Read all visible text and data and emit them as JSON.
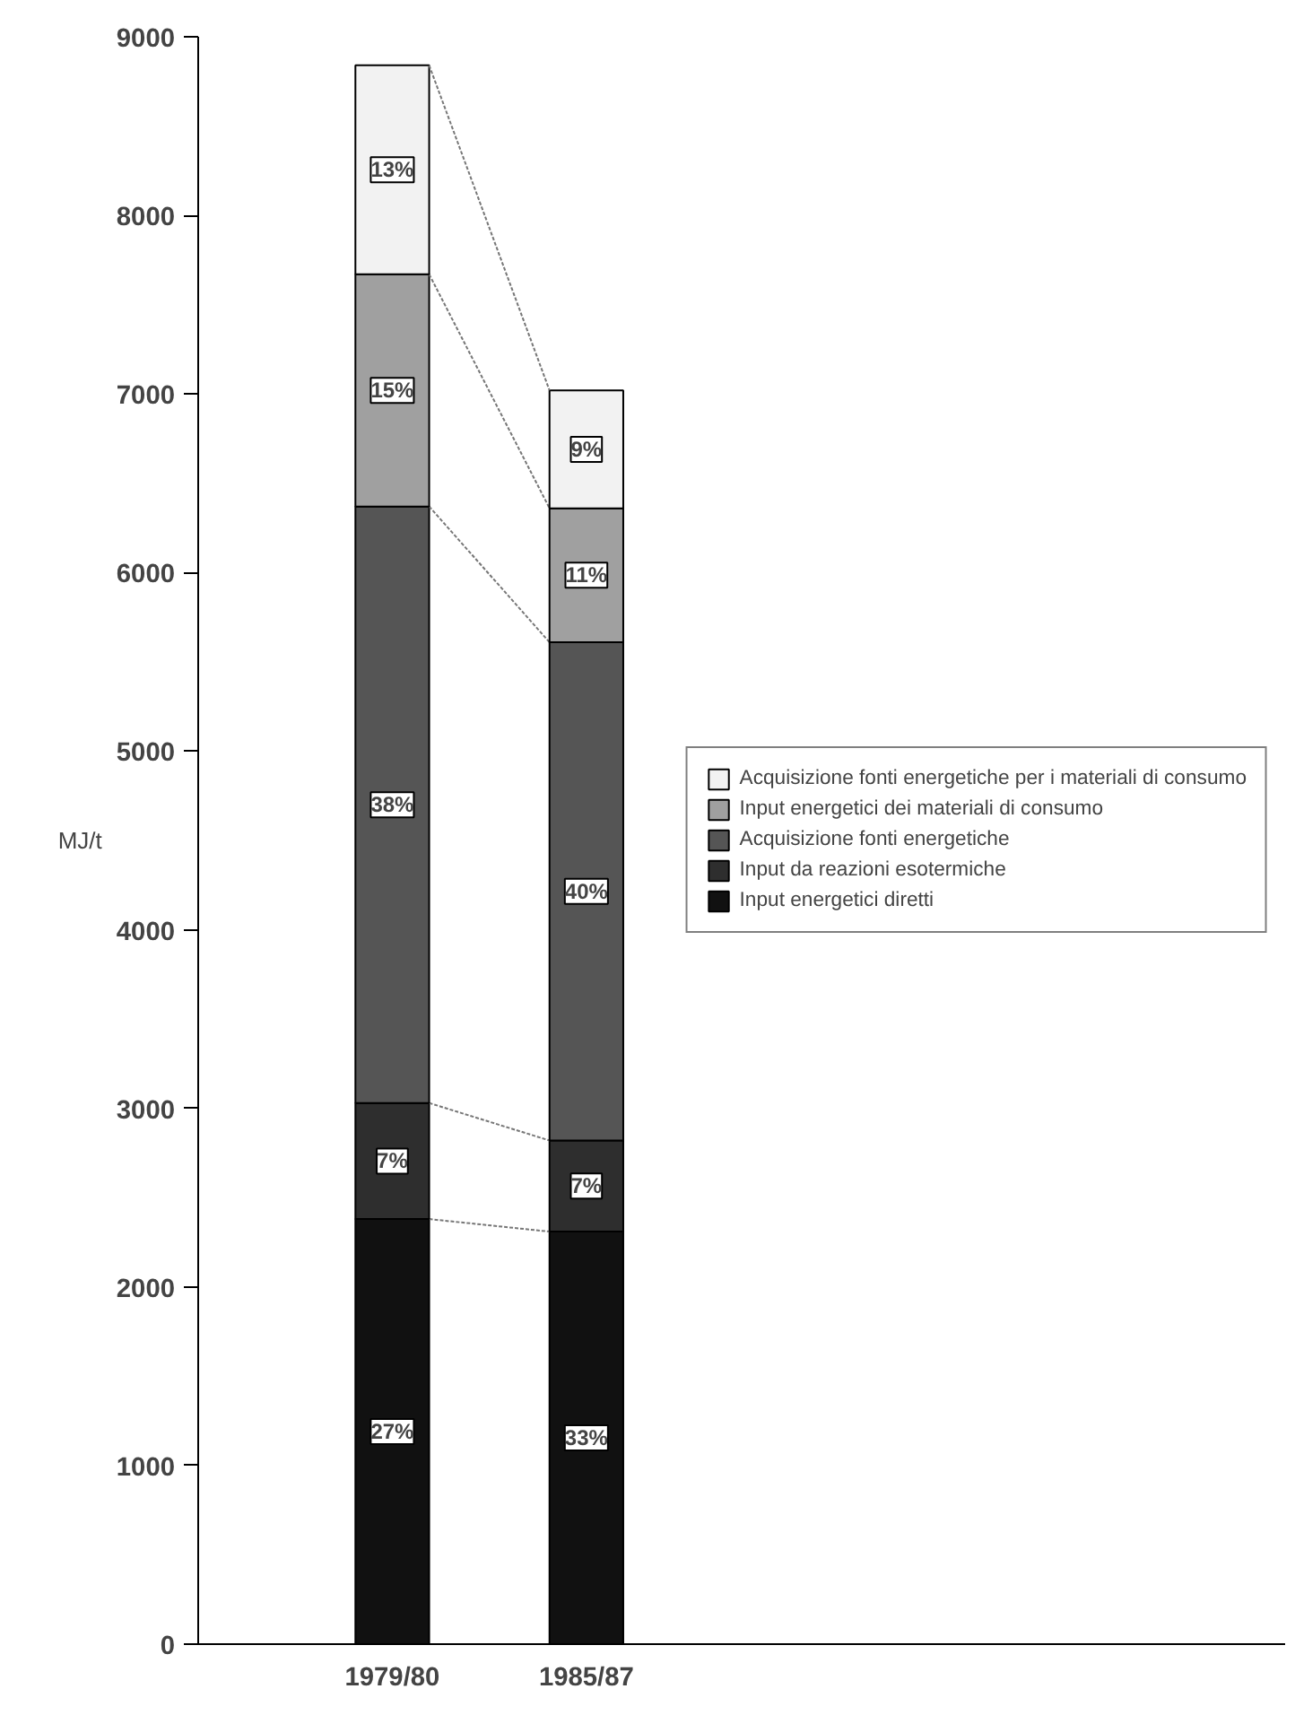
{
  "chart_data": {
    "type": "bar",
    "stacked": true,
    "ylabel": "MJ/t",
    "categories": [
      "1979/80",
      "1985/87"
    ],
    "series": [
      {
        "name": "Input energetici diretti",
        "color": "#111111",
        "values": [
          2380,
          2310
        ]
      },
      {
        "name": "Input da reazioni esotermiche",
        "color": "#2e2e2e",
        "values": [
          650,
          510
        ]
      },
      {
        "name": "Acquisizione fonti energetiche",
        "color": "#555555",
        "values": [
          3340,
          2790
        ]
      },
      {
        "name": "Input energetici dei materiali di consumo",
        "color": "#a0a0a0",
        "values": [
          1300,
          750
        ]
      },
      {
        "name": "Acquisizione fonti energetiche per i materiali di consumo",
        "color": "#f2f2f2",
        "values": [
          1170,
          660
        ]
      }
    ],
    "annotations": [
      {
        "text": "27%",
        "x": "1979/80",
        "y": 1190
      },
      {
        "text": "33%",
        "x": "1985/87",
        "y": 1155
      },
      {
        "text": "7%",
        "x": "1979/80",
        "y": 2705
      },
      {
        "text": "7%",
        "x": "1985/87",
        "y": 2565
      },
      {
        "text": "38%",
        "x": "1979/80",
        "y": 4700
      },
      {
        "text": "40%",
        "x": "1985/87",
        "y": 4215
      },
      {
        "text": "15%",
        "x": "1979/80",
        "y": 7020
      },
      {
        "text": "11%",
        "x": "1985/87",
        "y": 5985
      },
      {
        "text": "13%",
        "x": "1979/80",
        "y": 8255
      },
      {
        "text": "9%",
        "x": "1985/87",
        "y": 6690
      }
    ],
    "ylim": [
      0,
      9000
    ],
    "yticks": [
      0,
      1000,
      2000,
      3000,
      4000,
      5000,
      6000,
      7000,
      8000,
      9000
    ],
    "grid": false,
    "legend": "right"
  }
}
